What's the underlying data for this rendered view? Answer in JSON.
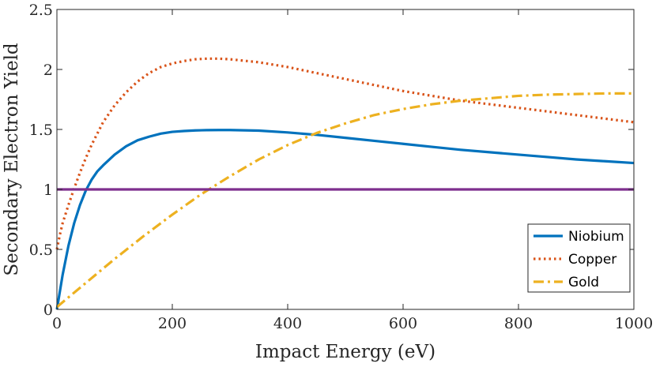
{
  "chart_data": {
    "type": "line",
    "title": "",
    "xlabel": "Impact Energy (eV)",
    "ylabel": "Secondary Electron Yield",
    "xlim": [
      0,
      1000
    ],
    "ylim": [
      0,
      2.5
    ],
    "xticks": [
      0,
      200,
      400,
      600,
      800,
      1000
    ],
    "xtick_labels": [
      "0",
      "200",
      "400",
      "600",
      "800",
      "1000"
    ],
    "yticks": [
      0,
      0.5,
      1,
      1.5,
      2,
      2.5
    ],
    "ytick_labels": [
      "0",
      "0.5",
      "1",
      "1.5",
      "2",
      "2.5"
    ],
    "grid": false,
    "legend_position": "bottom-right",
    "series": [
      {
        "name": "Niobium",
        "color": "#0072BD",
        "style": "solid",
        "x": [
          0,
          10,
          20,
          30,
          40,
          50,
          60,
          70,
          80,
          100,
          120,
          140,
          160,
          180,
          200,
          220,
          240,
          260,
          280,
          300,
          350,
          400,
          450,
          500,
          550,
          600,
          650,
          700,
          750,
          800,
          850,
          900,
          950,
          1000
        ],
        "y": [
          0.0,
          0.29,
          0.53,
          0.72,
          0.87,
          0.99,
          1.08,
          1.15,
          1.2,
          1.29,
          1.36,
          1.41,
          1.44,
          1.465,
          1.48,
          1.487,
          1.492,
          1.494,
          1.495,
          1.495,
          1.49,
          1.475,
          1.455,
          1.43,
          1.405,
          1.38,
          1.355,
          1.33,
          1.31,
          1.29,
          1.27,
          1.25,
          1.235,
          1.22
        ]
      },
      {
        "name": "Copper",
        "color": "#D95319",
        "style": "dotted",
        "x": [
          0,
          5,
          10,
          20,
          30,
          40,
          50,
          60,
          80,
          100,
          120,
          140,
          160,
          180,
          200,
          220,
          240,
          260,
          280,
          300,
          350,
          400,
          450,
          500,
          550,
          600,
          650,
          700,
          750,
          800,
          850,
          900,
          950,
          1000
        ],
        "y": [
          0.5,
          0.62,
          0.72,
          0.87,
          1.01,
          1.14,
          1.26,
          1.37,
          1.56,
          1.7,
          1.81,
          1.9,
          1.97,
          2.02,
          2.05,
          2.07,
          2.085,
          2.09,
          2.09,
          2.085,
          2.06,
          2.02,
          1.97,
          1.92,
          1.87,
          1.82,
          1.78,
          1.74,
          1.71,
          1.68,
          1.65,
          1.62,
          1.59,
          1.56
        ]
      },
      {
        "name": "Gold",
        "color": "#EDB120",
        "style": "dashdot",
        "x": [
          0,
          50,
          100,
          150,
          200,
          250,
          300,
          350,
          400,
          450,
          500,
          550,
          600,
          650,
          700,
          750,
          800,
          850,
          900,
          950,
          1000
        ],
        "y": [
          0.02,
          0.22,
          0.42,
          0.61,
          0.79,
          0.96,
          1.11,
          1.25,
          1.37,
          1.47,
          1.55,
          1.62,
          1.67,
          1.71,
          1.74,
          1.76,
          1.78,
          1.79,
          1.795,
          1.8,
          1.8
        ]
      },
      {
        "name": "",
        "color": "#7E2F8E",
        "style": "solid",
        "in_legend": false,
        "x": [
          0,
          1000
        ],
        "y": [
          1,
          1
        ]
      }
    ]
  }
}
